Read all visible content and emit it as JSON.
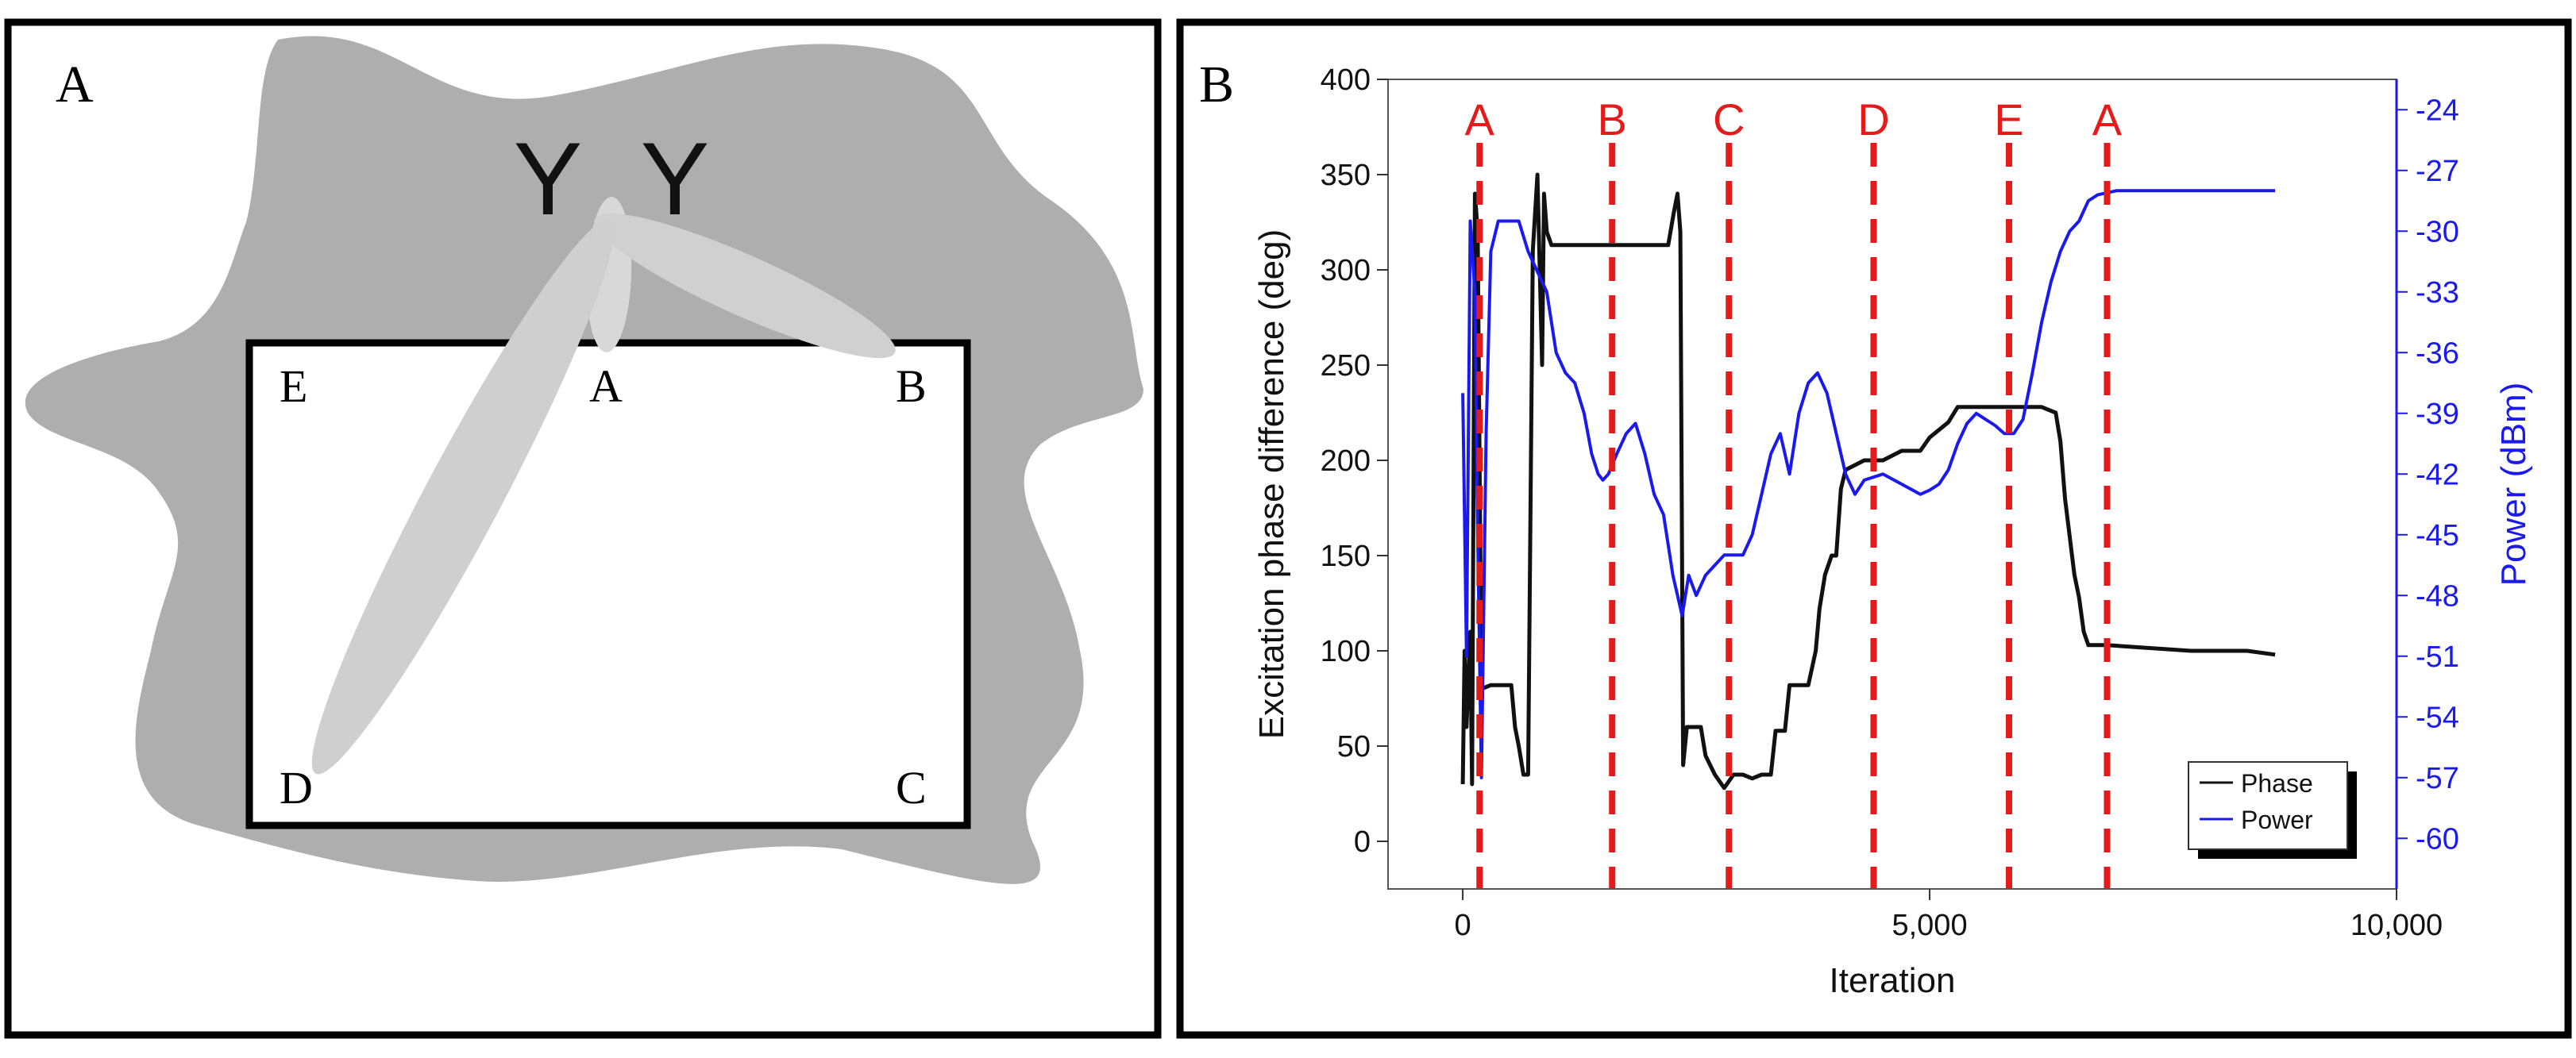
{
  "panel_a": {
    "label": "A",
    "room_corners": {
      "e": "E",
      "a": "A",
      "b": "B",
      "c": "C",
      "d": "D"
    },
    "antennas": [
      "Y",
      "Y"
    ],
    "colors": {
      "blob": "#aeaeae",
      "room": "#ffffff",
      "beam": "#d4d4d4"
    }
  },
  "panel_b": {
    "label": "B",
    "chart_data": {
      "type": "line",
      "xlabel": "Iteration",
      "ylabel": "Excitation phase difference (deg)",
      "y2label": "Power (dBm)",
      "xlim": [
        -800,
        10000
      ],
      "ylim": [
        -25,
        400
      ],
      "y2lim": [
        -62.5,
        -22.5
      ],
      "x_ticks": [
        0,
        5000,
        10000
      ],
      "x_tick_labels": [
        "0",
        "5,000",
        "10,000"
      ],
      "y_ticks": [
        0,
        50,
        100,
        150,
        200,
        250,
        300,
        350,
        400
      ],
      "y_tick_labels": [
        "0",
        "50",
        "100",
        "150",
        "200",
        "250",
        "300",
        "350",
        "400"
      ],
      "y2_ticks": [
        -60,
        -57,
        -54,
        -51,
        -48,
        -45,
        -42,
        -39,
        -36,
        -33,
        -30,
        -27,
        -24
      ],
      "y2_tick_labels": [
        "-60",
        "-57",
        "-54",
        "-51",
        "-48",
        "-45",
        "-42",
        "-39",
        "-36",
        "-33",
        "-30",
        "-27",
        "-24"
      ],
      "markers": [
        {
          "label": "A",
          "x": 180
        },
        {
          "label": "B",
          "x": 1600
        },
        {
          "label": "C",
          "x": 2850
        },
        {
          "label": "D",
          "x": 4400
        },
        {
          "label": "E",
          "x": 5850
        },
        {
          "label": "A",
          "x": 6900
        }
      ],
      "legend": {
        "position": "bottom-right",
        "entries": [
          "Phase",
          "Power"
        ]
      },
      "series": [
        {
          "name": "Phase",
          "axis": "left",
          "color": "#111111",
          "points": [
            [
              0,
              30
            ],
            [
              20,
              100
            ],
            [
              40,
              60
            ],
            [
              80,
              110
            ],
            [
              100,
              30
            ],
            [
              130,
              340
            ],
            [
              160,
              320
            ],
            [
              200,
              80
            ],
            [
              300,
              82
            ],
            [
              450,
              82
            ],
            [
              520,
              82
            ],
            [
              560,
              60
            ],
            [
              600,
              50
            ],
            [
              650,
              35
            ],
            [
              700,
              35
            ],
            [
              750,
              310
            ],
            [
              800,
              350
            ],
            [
              850,
              250
            ],
            [
              870,
              340
            ],
            [
              900,
              320
            ],
            [
              950,
              313
            ],
            [
              1200,
              313
            ],
            [
              1600,
              313
            ],
            [
              2000,
              313
            ],
            [
              2200,
              313
            ],
            [
              2260,
              330
            ],
            [
              2300,
              340
            ],
            [
              2330,
              320
            ],
            [
              2360,
              40
            ],
            [
              2400,
              60
            ],
            [
              2500,
              60
            ],
            [
              2550,
              60
            ],
            [
              2600,
              45
            ],
            [
              2700,
              35
            ],
            [
              2800,
              28
            ],
            [
              2900,
              35
            ],
            [
              3000,
              35
            ],
            [
              3100,
              33
            ],
            [
              3200,
              35
            ],
            [
              3300,
              35
            ],
            [
              3350,
              58
            ],
            [
              3450,
              58
            ],
            [
              3500,
              82
            ],
            [
              3700,
              82
            ],
            [
              3780,
              100
            ],
            [
              3820,
              122
            ],
            [
              3880,
              140
            ],
            [
              3950,
              150
            ],
            [
              4000,
              150
            ],
            [
              4050,
              185
            ],
            [
              4100,
              195
            ],
            [
              4300,
              200
            ],
            [
              4500,
              200
            ],
            [
              4700,
              205
            ],
            [
              4900,
              205
            ],
            [
              5000,
              212
            ],
            [
              5200,
              220
            ],
            [
              5300,
              228
            ],
            [
              5500,
              228
            ],
            [
              5800,
              228
            ],
            [
              6000,
              228
            ],
            [
              6200,
              228
            ],
            [
              6350,
              225
            ],
            [
              6400,
              210
            ],
            [
              6450,
              180
            ],
            [
              6500,
              160
            ],
            [
              6550,
              140
            ],
            [
              6600,
              128
            ],
            [
              6650,
              110
            ],
            [
              6700,
              103
            ],
            [
              6900,
              103
            ],
            [
              7200,
              102
            ],
            [
              7500,
              101
            ],
            [
              7800,
              100
            ],
            [
              8100,
              100
            ],
            [
              8400,
              100
            ],
            [
              8700,
              98
            ]
          ]
        },
        {
          "name": "Power",
          "axis": "right",
          "color": "#1a1aee",
          "points": [
            [
              0,
              -38
            ],
            [
              40,
              -51
            ],
            [
              80,
              -29.5
            ],
            [
              130,
              -33
            ],
            [
              160,
              -45
            ],
            [
              200,
              -57
            ],
            [
              250,
              -40
            ],
            [
              300,
              -31
            ],
            [
              380,
              -29.5
            ],
            [
              600,
              -29.5
            ],
            [
              700,
              -31
            ],
            [
              800,
              -32
            ],
            [
              900,
              -33
            ],
            [
              1000,
              -36
            ],
            [
              1100,
              -37
            ],
            [
              1200,
              -37.5
            ],
            [
              1300,
              -39
            ],
            [
              1380,
              -41
            ],
            [
              1450,
              -42
            ],
            [
              1500,
              -42.3
            ],
            [
              1560,
              -42
            ],
            [
              1650,
              -41
            ],
            [
              1750,
              -40
            ],
            [
              1850,
              -39.5
            ],
            [
              1950,
              -41
            ],
            [
              2050,
              -43
            ],
            [
              2150,
              -44
            ],
            [
              2250,
              -47
            ],
            [
              2350,
              -49
            ],
            [
              2420,
              -47
            ],
            [
              2500,
              -48
            ],
            [
              2600,
              -47
            ],
            [
              2700,
              -46.5
            ],
            [
              2800,
              -46
            ],
            [
              2900,
              -46
            ],
            [
              3000,
              -46
            ],
            [
              3100,
              -45
            ],
            [
              3200,
              -43
            ],
            [
              3300,
              -41
            ],
            [
              3400,
              -40
            ],
            [
              3500,
              -42
            ],
            [
              3600,
              -39
            ],
            [
              3700,
              -37.5
            ],
            [
              3800,
              -37
            ],
            [
              3900,
              -38
            ],
            [
              3950,
              -39
            ],
            [
              4050,
              -41
            ],
            [
              4100,
              -42
            ],
            [
              4200,
              -43
            ],
            [
              4300,
              -42.3
            ],
            [
              4500,
              -42
            ],
            [
              4700,
              -42.5
            ],
            [
              4900,
              -43
            ],
            [
              5000,
              -42.8
            ],
            [
              5100,
              -42.5
            ],
            [
              5200,
              -41.8
            ],
            [
              5300,
              -40.5
            ],
            [
              5400,
              -39.5
            ],
            [
              5500,
              -39
            ],
            [
              5600,
              -39.3
            ],
            [
              5700,
              -39.6
            ],
            [
              5800,
              -40
            ],
            [
              5900,
              -40
            ],
            [
              6000,
              -39.3
            ],
            [
              6100,
              -37
            ],
            [
              6200,
              -34.5
            ],
            [
              6300,
              -32.5
            ],
            [
              6400,
              -31
            ],
            [
              6500,
              -30
            ],
            [
              6600,
              -29.5
            ],
            [
              6700,
              -28.5
            ],
            [
              6800,
              -28.2
            ],
            [
              7000,
              -28
            ],
            [
              7500,
              -28
            ],
            [
              8000,
              -28
            ],
            [
              8500,
              -28
            ],
            [
              8700,
              -28
            ]
          ]
        }
      ]
    }
  }
}
